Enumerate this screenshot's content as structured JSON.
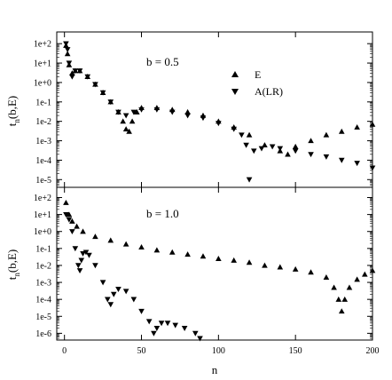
{
  "chart_data": [
    {
      "type": "scatter",
      "panel": "top",
      "ylabel": "t_n(b,E)",
      "xlabel": "",
      "annotation": "b = 0.5",
      "legend": {
        "placement": "top-right",
        "entries": [
          {
            "label": "E",
            "marker": "triangle-up"
          },
          {
            "label": "A(LR)",
            "marker": "triangle-down"
          }
        ]
      },
      "yscale": "log",
      "ylim": [
        4e-06,
        400.0
      ],
      "xlim": [
        -5,
        200
      ],
      "yticks": [
        "1e+2",
        "1e+1",
        "1e+0",
        "1e-1",
        "1e-2",
        "1e-3",
        "1e-4",
        "1e-5"
      ],
      "xticks": [],
      "series": [
        {
          "name": "E",
          "marker": "triangle-up",
          "points": [
            [
              1,
              80
            ],
            [
              2,
              30
            ],
            [
              3,
              8
            ],
            [
              5,
              3
            ],
            [
              7,
              4
            ],
            [
              10,
              4
            ],
            [
              15,
              2
            ],
            [
              20,
              0.8
            ],
            [
              25,
              0.3
            ],
            [
              30,
              0.1
            ],
            [
              35,
              0.03
            ],
            [
              38,
              0.01
            ],
            [
              40,
              0.004
            ],
            [
              42,
              0.003
            ],
            [
              44,
              0.01
            ],
            [
              47,
              0.03
            ],
            [
              50,
              0.05
            ],
            [
              60,
              0.05
            ],
            [
              70,
              0.04
            ],
            [
              80,
              0.03
            ],
            [
              90,
              0.02
            ],
            [
              100,
              0.01
            ],
            [
              110,
              0.005
            ],
            [
              120,
              0.002
            ],
            [
              130,
              0.0006
            ],
            [
              140,
              0.0003
            ],
            [
              145,
              0.0002
            ],
            [
              150,
              0.0005
            ],
            [
              160,
              0.001
            ],
            [
              170,
              0.002
            ],
            [
              180,
              0.003
            ],
            [
              190,
              0.005
            ],
            [
              200,
              0.007
            ]
          ]
        },
        {
          "name": "A(LR)",
          "marker": "triangle-down",
          "points": [
            [
              1,
              100
            ],
            [
              2,
              50
            ],
            [
              3,
              10
            ],
            [
              5,
              2
            ],
            [
              7,
              4
            ],
            [
              10,
              4
            ],
            [
              15,
              2
            ],
            [
              20,
              0.8
            ],
            [
              25,
              0.3
            ],
            [
              30,
              0.1
            ],
            [
              35,
              0.03
            ],
            [
              40,
              0.02
            ],
            [
              45,
              0.03
            ],
            [
              50,
              0.04
            ],
            [
              60,
              0.04
            ],
            [
              70,
              0.03
            ],
            [
              80,
              0.02
            ],
            [
              90,
              0.015
            ],
            [
              100,
              0.008
            ],
            [
              110,
              0.004
            ],
            [
              115,
              0.002
            ],
            [
              118,
              0.0006
            ],
            [
              120,
              1e-05
            ],
            [
              123,
              0.0003
            ],
            [
              128,
              0.0004
            ],
            [
              135,
              0.0005
            ],
            [
              140,
              0.0004
            ],
            [
              150,
              0.0003
            ],
            [
              160,
              0.0002
            ],
            [
              170,
              0.00015
            ],
            [
              180,
              0.0001
            ],
            [
              190,
              7e-05
            ],
            [
              200,
              4e-05
            ]
          ]
        }
      ]
    },
    {
      "type": "scatter",
      "panel": "bottom",
      "ylabel": "t_n(b,E)",
      "xlabel": "n",
      "annotation": "b = 1.0",
      "yscale": "log",
      "ylim": [
        4e-07,
        400.0
      ],
      "xlim": [
        -5,
        200
      ],
      "yticks": [
        "1e+2",
        "1e+1",
        "1e+0",
        "1e-1",
        "1e-2",
        "1e-3",
        "1e-4",
        "1e-5",
        "1e-6"
      ],
      "xticks": [
        "0",
        "50",
        "100",
        "150",
        "200"
      ],
      "series": [
        {
          "name": "E",
          "marker": "triangle-up",
          "points": [
            [
              1,
              50
            ],
            [
              3,
              10
            ],
            [
              5,
              4
            ],
            [
              8,
              2
            ],
            [
              12,
              1
            ],
            [
              20,
              0.5
            ],
            [
              30,
              0.3
            ],
            [
              40,
              0.18
            ],
            [
              50,
              0.12
            ],
            [
              60,
              0.08
            ],
            [
              70,
              0.06
            ],
            [
              80,
              0.045
            ],
            [
              90,
              0.035
            ],
            [
              100,
              0.025
            ],
            [
              110,
              0.02
            ],
            [
              120,
              0.015
            ],
            [
              130,
              0.01
            ],
            [
              140,
              0.008
            ],
            [
              150,
              0.006
            ],
            [
              160,
              0.004
            ],
            [
              170,
              0.002
            ],
            [
              175,
              0.0005
            ],
            [
              178,
              0.0001
            ],
            [
              180,
              2e-05
            ],
            [
              182,
              0.0001
            ],
            [
              185,
              0.0005
            ],
            [
              190,
              0.0015
            ],
            [
              195,
              0.003
            ],
            [
              200,
              0.005
            ]
          ]
        },
        {
          "name": "A(LR)",
          "marker": "triangle-down",
          "points": [
            [
              1,
              10
            ],
            [
              3,
              5
            ],
            [
              5,
              1
            ],
            [
              7,
              0.1
            ],
            [
              9,
              0.01
            ],
            [
              10,
              0.005
            ],
            [
              11,
              0.02
            ],
            [
              12,
              0.05
            ],
            [
              14,
              0.06
            ],
            [
              16,
              0.04
            ],
            [
              20,
              0.01
            ],
            [
              25,
              0.001
            ],
            [
              28,
              0.0001
            ],
            [
              30,
              5e-05
            ],
            [
              32,
              0.0002
            ],
            [
              35,
              0.0004
            ],
            [
              40,
              0.0003
            ],
            [
              45,
              0.0001
            ],
            [
              50,
              2e-05
            ],
            [
              55,
              5e-06
            ],
            [
              58,
              1e-06
            ],
            [
              60,
              2e-06
            ],
            [
              63,
              4e-06
            ],
            [
              67,
              4e-06
            ],
            [
              72,
              3e-06
            ],
            [
              78,
              2e-06
            ],
            [
              85,
              1e-06
            ],
            [
              88,
              5e-07
            ]
          ]
        }
      ]
    }
  ]
}
